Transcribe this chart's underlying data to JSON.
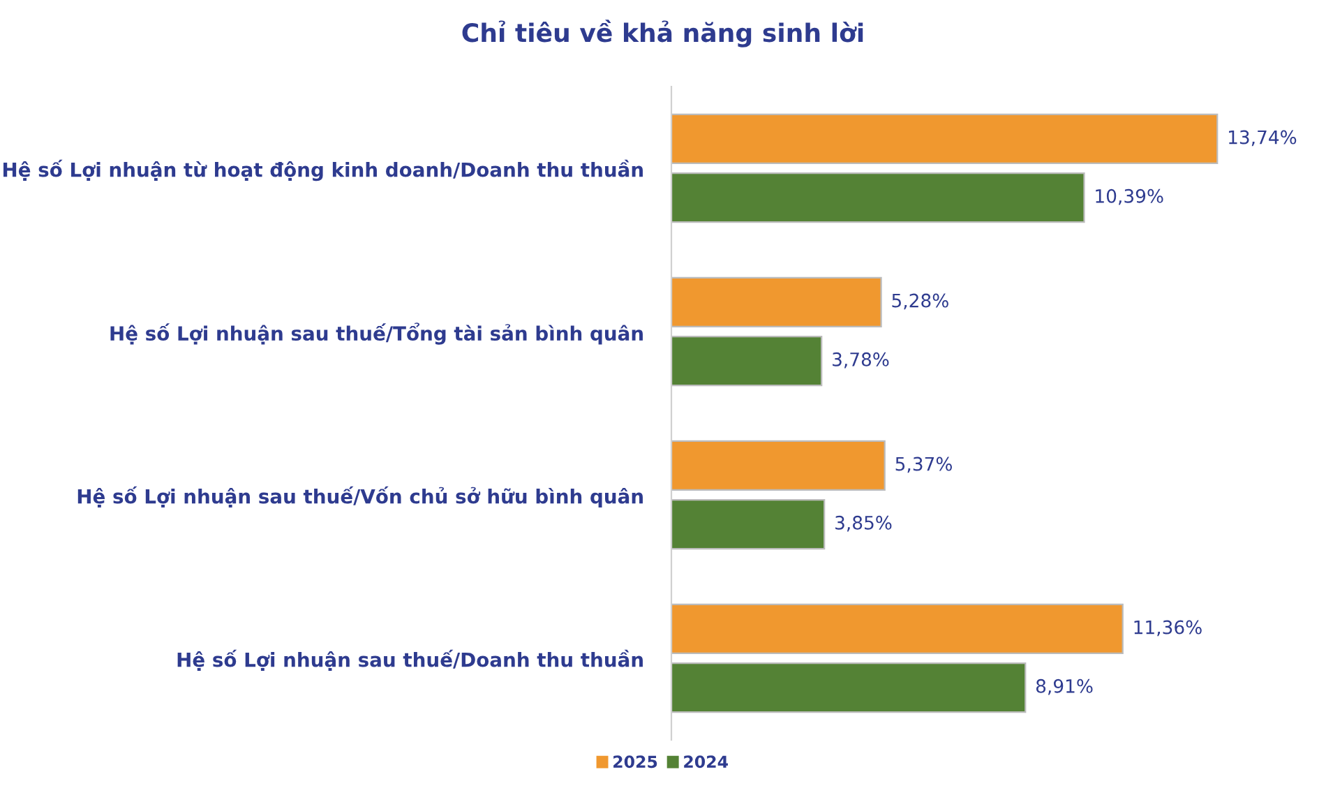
{
  "chart_data": {
    "type": "bar",
    "orientation": "horizontal",
    "title": "Chỉ tiêu về khả năng sinh lời",
    "categories": [
      "Hệ số Lợi nhuận từ hoạt động kinh doanh/Doanh thu thuần",
      "Hệ số Lợi nhuận sau thuế/Tổng tài sản bình quân",
      "Hệ số Lợi nhuận sau thuế/Vốn chủ sở hữu bình quân",
      "Hệ số Lợi nhuận sau thuế/Doanh thu thuần"
    ],
    "series": [
      {
        "name": "2025",
        "color": "#f0982f",
        "values": [
          13.74,
          5.28,
          5.37,
          11.36
        ],
        "value_labels": [
          "13,74%",
          "5,28%",
          "5,37%",
          "11,36%"
        ]
      },
      {
        "name": "2024",
        "color": "#548235",
        "values": [
          10.39,
          3.78,
          3.85,
          8.91
        ],
        "value_labels": [
          "10,39%",
          "3,78%",
          "3,85%",
          "8,91%"
        ]
      }
    ],
    "legend": "bottom",
    "grid": false
  }
}
